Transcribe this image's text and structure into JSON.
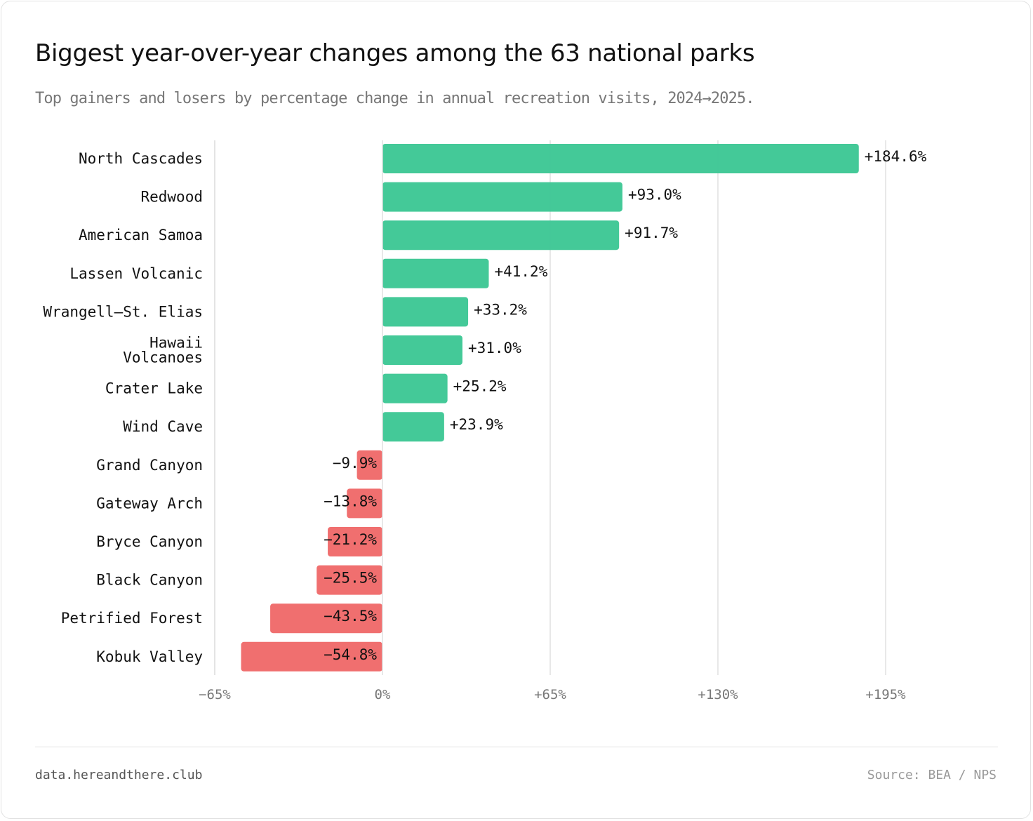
{
  "header": {
    "title": "Biggest year-over-year changes among the 63 national parks",
    "subtitle": "Top gainers and losers by percentage change in annual recreation visits, 2024→2025."
  },
  "footer": {
    "site": "data.hereandthere.club",
    "source": "Source: BEA / NPS"
  },
  "colors": {
    "positive": "#3ec795",
    "negative": "#f06a6a",
    "grid": "#e0e0e0"
  },
  "chart_data": {
    "type": "bar",
    "orientation": "horizontal",
    "title": "Biggest year-over-year changes among the 63 national parks",
    "xlabel": "",
    "ylabel": "",
    "xlim": [
      -65,
      215
    ],
    "xticks": [
      -65,
      0,
      65,
      130,
      195
    ],
    "xtick_labels": [
      "−65%",
      "0%",
      "+65%",
      "+130%",
      "+195%"
    ],
    "grid": "vertical",
    "categories": [
      [
        "North Cascades"
      ],
      [
        "Redwood"
      ],
      [
        "American Samoa"
      ],
      [
        "Lassen Volcanic"
      ],
      [
        "Wrangell–St. Elias"
      ],
      [
        "Hawaii",
        "Volcanoes"
      ],
      [
        "Crater Lake"
      ],
      [
        "Wind Cave"
      ],
      [
        "Grand Canyon"
      ],
      [
        "Gateway Arch"
      ],
      [
        "Bryce Canyon"
      ],
      [
        "Black Canyon"
      ],
      [
        "Petrified Forest"
      ],
      [
        "Kobuk Valley"
      ]
    ],
    "values": [
      184.6,
      93.0,
      91.7,
      41.2,
      33.2,
      31.0,
      25.2,
      23.9,
      -9.9,
      -13.8,
      -21.2,
      -25.5,
      -43.5,
      -54.8
    ],
    "labels": [
      "+184.6%",
      "+93.0%",
      "+91.7%",
      "+41.2%",
      "+33.2%",
      "+31.0%",
      "+25.2%",
      "+23.9%",
      "−9.9%",
      "−13.8%",
      "−21.2%",
      "−25.5%",
      "−43.5%",
      "−54.8%"
    ]
  }
}
